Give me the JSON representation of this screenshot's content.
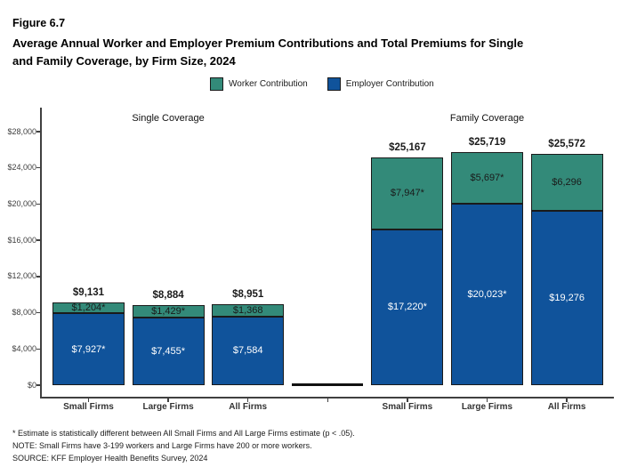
{
  "figure": {
    "label": "Figure 6.7",
    "title_line1": "Average Annual Worker and Employer Premium Contributions and Total Premiums for Single",
    "title_line2": "and Family Coverage, by Firm Size, 2024"
  },
  "footnotes": [
    "* Estimate is statistically different between All Small Firms and All Large Firms estimate (p < .05).",
    "NOTE: Small Firms have 3-199 workers and Large Firms have 200 or more workers.",
    "SOURCE: KFF Employer Health Benefits Survey, 2024"
  ],
  "colors": {
    "worker": "#338A79",
    "employer": "#10539B",
    "bar_border": "#1a1a1a",
    "axis": "#404040"
  },
  "chart_data": {
    "type": "bar",
    "stacked": true,
    "title": "Average Annual Worker and Employer Premium Contributions and Total Premiums for Single and Family Coverage, by Firm Size, 2024",
    "xlabel": "",
    "ylabel": "",
    "ylim": [
      0,
      28000
    ],
    "grid": false,
    "legend_position": "top-center",
    "yticks": [
      {
        "value": 0,
        "label": "$0"
      },
      {
        "value": 4000,
        "label": "$4,000"
      },
      {
        "value": 8000,
        "label": "$8,000"
      },
      {
        "value": 12000,
        "label": "$12,000"
      },
      {
        "value": 16000,
        "label": "$16,000"
      },
      {
        "value": 20000,
        "label": "$20,000"
      },
      {
        "value": 24000,
        "label": "$24,000"
      },
      {
        "value": 28000,
        "label": "$28,000"
      }
    ],
    "legend": [
      {
        "name": "Worker Contribution",
        "color": "#338A79"
      },
      {
        "name": "Employer Contribution",
        "color": "#10539B"
      }
    ],
    "groups": [
      {
        "title": "Single Coverage",
        "bars": [
          {
            "category": "Small Firms",
            "worker": 1204,
            "employer": 7927,
            "total": 9131,
            "worker_label": "$1,204*",
            "employer_label": "$7,927*",
            "total_label": "$9,131"
          },
          {
            "category": "Large Firms",
            "worker": 1429,
            "employer": 7455,
            "total": 8884,
            "worker_label": "$1,429*",
            "employer_label": "$7,455*",
            "total_label": "$8,884"
          },
          {
            "category": "All Firms",
            "worker": 1368,
            "employer": 7584,
            "total": 8951,
            "worker_label": "$1,368",
            "employer_label": "$7,584",
            "total_label": "$8,951"
          }
        ]
      },
      {
        "title": "Family Coverage",
        "bars": [
          {
            "category": "Small Firms",
            "worker": 7947,
            "employer": 17220,
            "total": 25167,
            "worker_label": "$7,947*",
            "employer_label": "$17,220*",
            "total_label": "$25,167"
          },
          {
            "category": "Large Firms",
            "worker": 5697,
            "employer": 20023,
            "total": 25719,
            "worker_label": "$5,697*",
            "employer_label": "$20,023*",
            "total_label": "$25,719"
          },
          {
            "category": "All Firms",
            "worker": 6296,
            "employer": 19276,
            "total": 25572,
            "worker_label": "$6,296",
            "employer_label": "$19,276",
            "total_label": "$25,572"
          }
        ]
      }
    ],
    "empty_middle_category": true
  }
}
